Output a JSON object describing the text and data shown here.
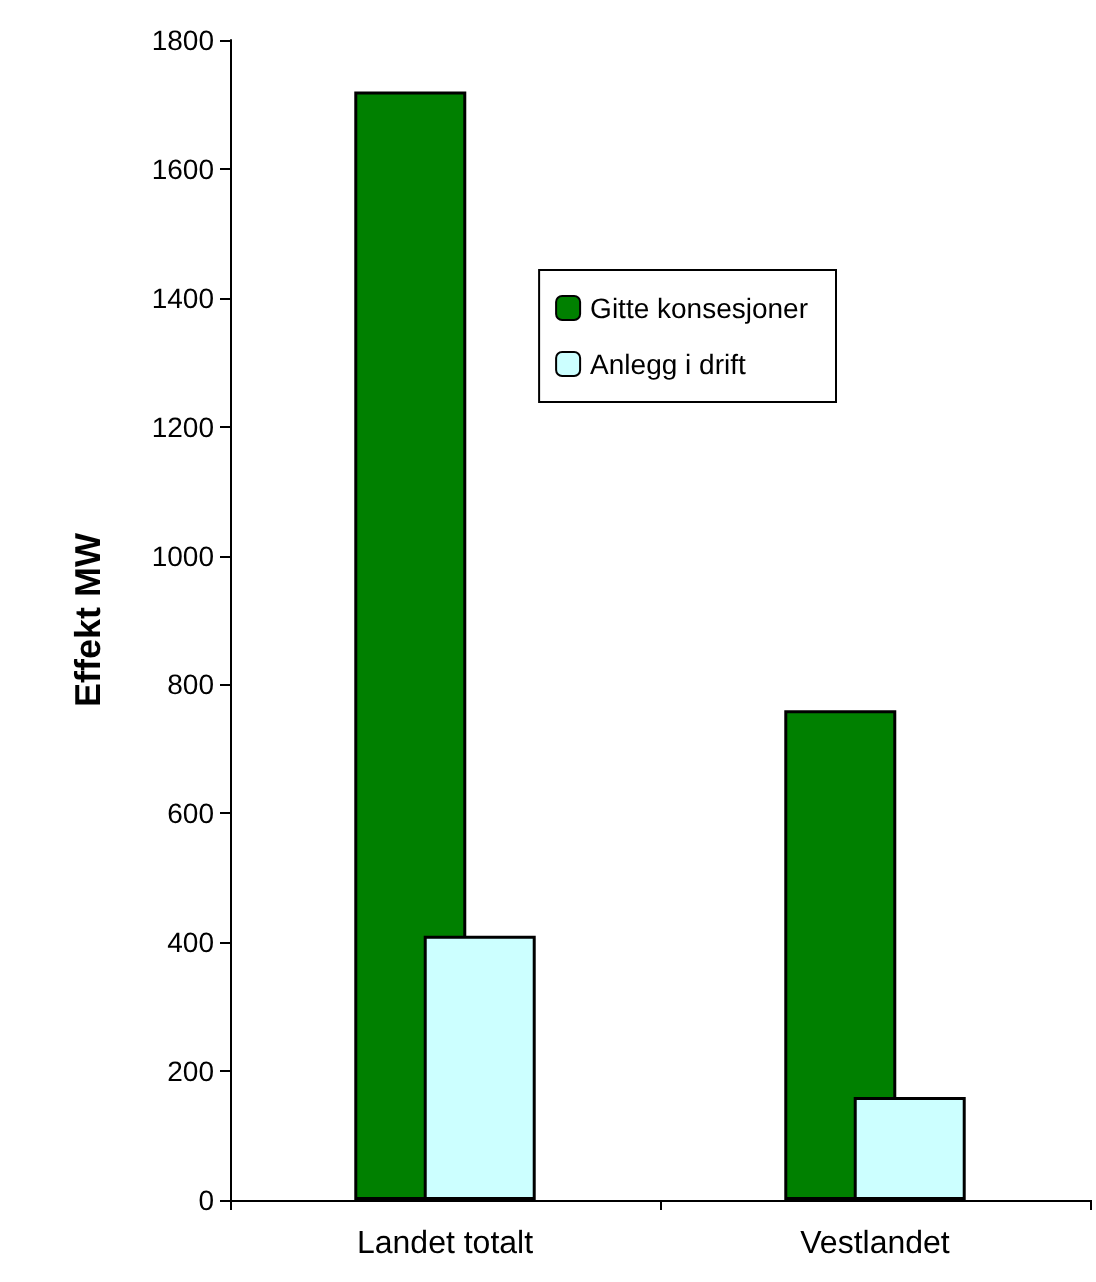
{
  "chart_data": {
    "type": "bar",
    "ylabel": "Effekt MW",
    "categories": [
      "Landet totalt",
      "Vestlandet"
    ],
    "series": [
      {
        "name": "Gitte konsesjoner",
        "color": "#008000",
        "values": [
          1720,
          760
        ]
      },
      {
        "name": "Anlegg i drift",
        "color": "#ccffff",
        "values": [
          410,
          160
        ]
      }
    ],
    "ylim": [
      0,
      1800
    ],
    "yticks": [
      0,
      200,
      400,
      600,
      800,
      1000,
      1200,
      1400,
      1600,
      1800
    ],
    "grid": false,
    "legend": "top right"
  }
}
